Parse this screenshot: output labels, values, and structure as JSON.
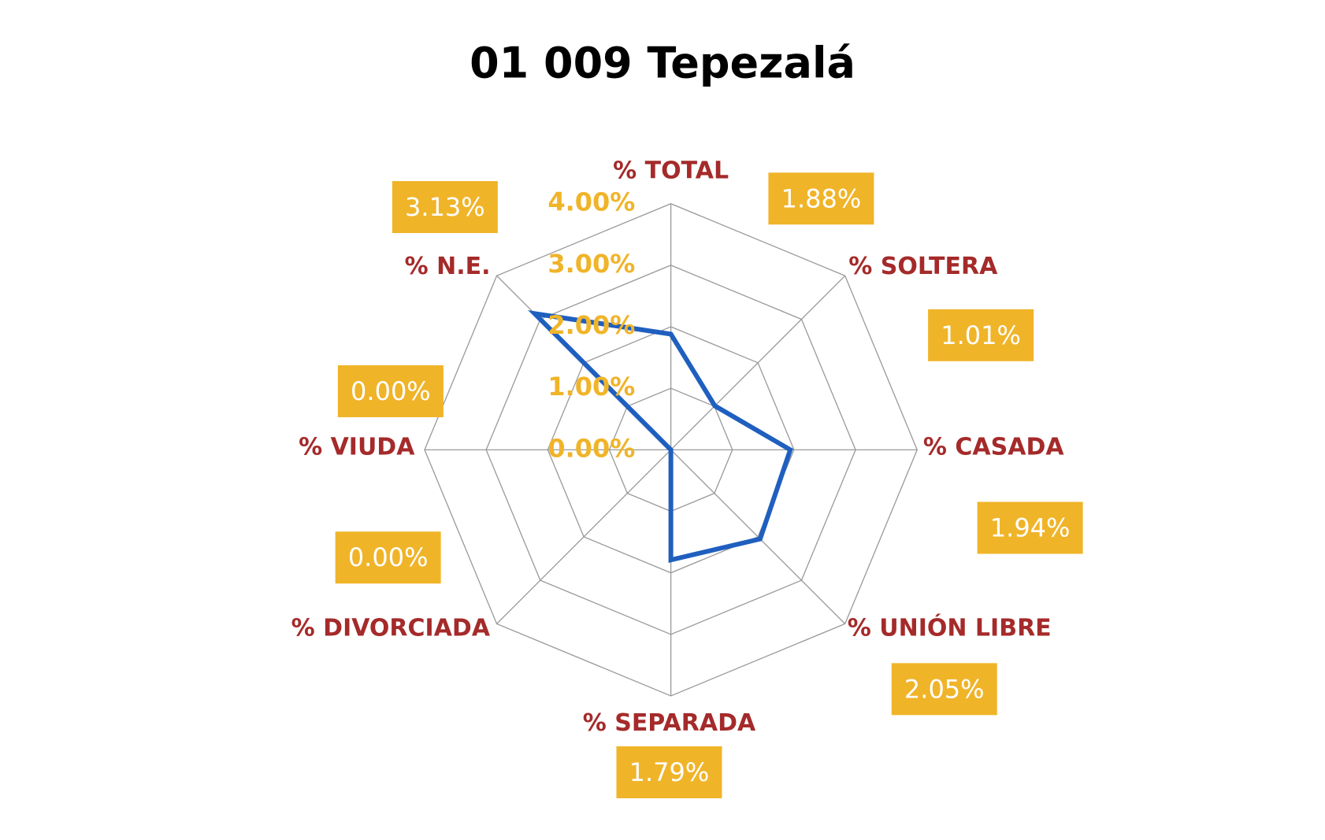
{
  "chart_data": {
    "type": "radar",
    "title": "01 009 Tepezalá",
    "categories": [
      "% TOTAL",
      "% SOLTERA",
      "% CASADA",
      "% UNIÓN LIBRE",
      "% SEPARADA",
      "% DIVORCIADA",
      "% VIUDA",
      "% N.E."
    ],
    "series": [
      {
        "color": "#1f5fbf",
        "values": [
          1.88,
          1.01,
          1.94,
          2.05,
          1.79,
          0,
          0,
          3.13
        ],
        "value_labels": [
          "1.88%",
          "1.01%",
          "1.94%",
          "2.05%",
          "1.79%",
          "0.00%",
          "0.00%",
          "3.13%"
        ]
      }
    ],
    "ylim": [
      0,
      4
    ],
    "yticks": [
      {
        "value": 0,
        "label": "0.00%"
      },
      {
        "value": 1,
        "label": "1.00%"
      },
      {
        "value": 2,
        "label": "2.00%"
      },
      {
        "value": 3,
        "label": "3.00%"
      },
      {
        "value": 4,
        "label": "4.00%"
      }
    ],
    "grid": true
  }
}
